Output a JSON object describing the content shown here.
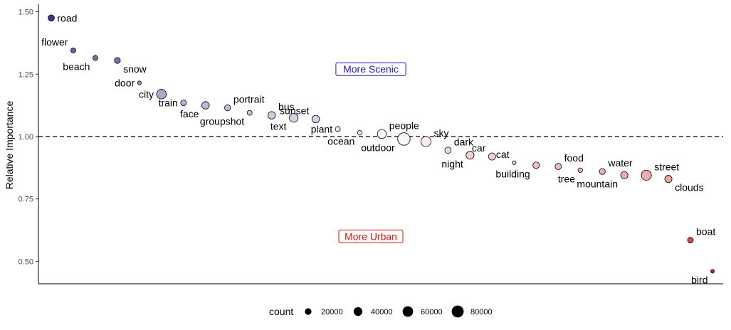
{
  "chart_data": {
    "type": "scatter",
    "ylabel": "Relative Importance",
    "xlabel": "",
    "ylim": [
      0.41,
      1.53
    ],
    "yticks": [
      0.5,
      0.75,
      1.0,
      1.25,
      1.5
    ],
    "ytick_labels": [
      "0.50",
      "0.75",
      "1.00",
      "1.25",
      "1.50"
    ],
    "reference_line": 1.0,
    "annotations": [
      {
        "text": "More Scenic",
        "y": 1.27,
        "color": "#1a1ad6"
      },
      {
        "text": "More Urban",
        "y": 0.6,
        "color": "#e01010"
      }
    ],
    "legend": {
      "title": "count",
      "values": [
        20000,
        40000,
        60000,
        80000
      ],
      "labels": [
        "20000",
        "40000",
        "60000",
        "80000"
      ],
      "position": "bottom"
    },
    "color_scale": {
      "low": "#3b3591",
      "mid": "#ffffff",
      "high": "#d7191c"
    },
    "points": [
      {
        "label": "road",
        "y": 1.475,
        "count": 18000,
        "label_pos": "right"
      },
      {
        "label": "flower",
        "y": 1.345,
        "count": 10000,
        "label_pos": "upper-left"
      },
      {
        "label": "beach",
        "y": 1.315,
        "count": 10000,
        "label_pos": "lower-left"
      },
      {
        "label": "snow",
        "y": 1.305,
        "count": 16000,
        "label_pos": "lower-right"
      },
      {
        "label": "door",
        "y": 1.215,
        "count": 5000,
        "label_pos": "left"
      },
      {
        "label": "city",
        "y": 1.17,
        "count": 50000,
        "label_pos": "left"
      },
      {
        "label": "train",
        "y": 1.135,
        "count": 14000,
        "label_pos": "left"
      },
      {
        "label": "face",
        "y": 1.125,
        "count": 28000,
        "label_pos": "lower-left"
      },
      {
        "label": "portrait",
        "y": 1.115,
        "count": 16000,
        "label_pos": "upper-right"
      },
      {
        "label": "groupshot",
        "y": 1.095,
        "count": 10000,
        "label_pos": "lower-left"
      },
      {
        "label": "bus",
        "y": 1.085,
        "count": 28000,
        "label_pos": "upper-right"
      },
      {
        "label": "text",
        "y": 1.075,
        "count": 40000,
        "label_pos": "lower-left"
      },
      {
        "label": "sunset",
        "y": 1.07,
        "count": 28000,
        "label_pos": "upper-left"
      },
      {
        "label": "plant",
        "y": 1.03,
        "count": 10000,
        "label_pos": "left"
      },
      {
        "label": "ocean",
        "y": 1.015,
        "count": 8000,
        "label_pos": "lower-left"
      },
      {
        "label": "people",
        "y": 1.01,
        "count": 42000,
        "label_pos": "upper-right"
      },
      {
        "label": "outdoor",
        "y": 0.99,
        "count": 88000,
        "label_pos": "lower-left"
      },
      {
        "label": "sky",
        "y": 0.98,
        "count": 55000,
        "label_pos": "upper-right"
      },
      {
        "label": "dark",
        "y": 0.945,
        "count": 18000,
        "label_pos": "upper-right"
      },
      {
        "label": "night",
        "y": 0.925,
        "count": 32000,
        "label_pos": "lower-left"
      },
      {
        "label": "car",
        "y": 0.92,
        "count": 25000,
        "label_pos": "upper-left"
      },
      {
        "label": "cat",
        "y": 0.895,
        "count": 5000,
        "label_pos": "upper-left"
      },
      {
        "label": "building",
        "y": 0.885,
        "count": 20000,
        "label_pos": "lower-left"
      },
      {
        "label": "food",
        "y": 0.88,
        "count": 18000,
        "label_pos": "upper-right"
      },
      {
        "label": "tree",
        "y": 0.865,
        "count": 8000,
        "label_pos": "lower-left"
      },
      {
        "label": "water",
        "y": 0.86,
        "count": 16000,
        "label_pos": "upper-right"
      },
      {
        "label": "mountain",
        "y": 0.845,
        "count": 26000,
        "label_pos": "lower-left"
      },
      {
        "label": "street",
        "y": 0.845,
        "count": 55000,
        "label_pos": "upper-right"
      },
      {
        "label": "clouds",
        "y": 0.83,
        "count": 25000,
        "label_pos": "lower-right"
      },
      {
        "label": "boat",
        "y": 0.585,
        "count": 14000,
        "label_pos": "upper-right"
      },
      {
        "label": "bird",
        "y": 0.46,
        "count": 4000,
        "label_pos": "lower-left"
      }
    ]
  }
}
